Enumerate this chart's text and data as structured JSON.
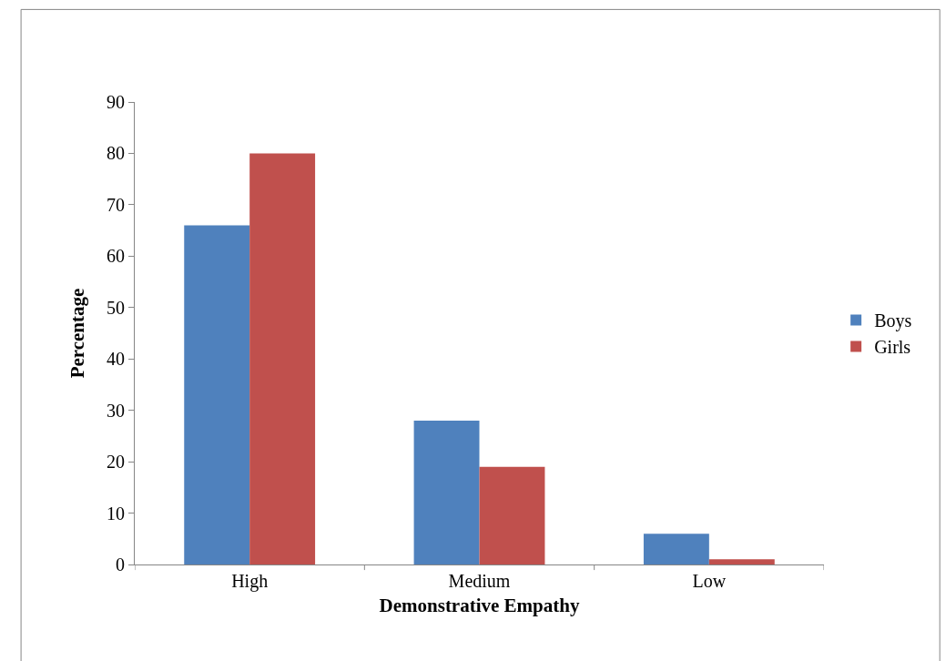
{
  "chart_data": {
    "type": "bar",
    "xlabel": "Demonstrative Empathy",
    "ylabel": "Percentage",
    "categories": [
      "High",
      "Medium",
      "Low"
    ],
    "series": [
      {
        "name": "Boys",
        "color": "#4f81bd",
        "values": [
          66,
          28,
          6
        ]
      },
      {
        "name": "Girls",
        "color": "#c0504d",
        "values": [
          80,
          19,
          1
        ]
      }
    ],
    "ylim": [
      0,
      90
    ],
    "yticks": [
      0,
      10,
      20,
      30,
      40,
      50,
      60,
      70,
      80,
      90
    ],
    "legend": "right"
  }
}
